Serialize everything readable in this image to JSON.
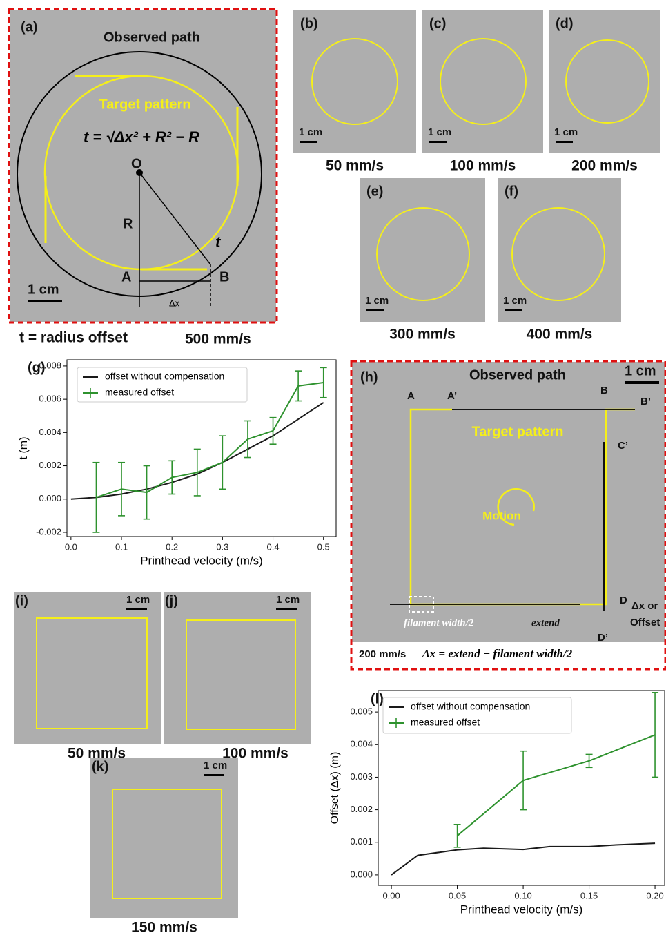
{
  "panel_a": {
    "label": "(a)",
    "observed": "Observed path",
    "target": "Target pattern",
    "formula": "t = √Δx² + R² − R",
    "o": "O",
    "r": "R",
    "a": "A",
    "b": "B",
    "t": "t",
    "dx": "Δx",
    "scale": "1 cm",
    "caption": "t = radius offset",
    "speed": "500 mm/s"
  },
  "panels_bf": [
    {
      "label": "(b)",
      "scale": "1 cm",
      "speed": "50 mm/s"
    },
    {
      "label": "(c)",
      "scale": "1 cm",
      "speed": "100 mm/s"
    },
    {
      "label": "(d)",
      "scale": "1 cm",
      "speed": "200 mm/s"
    },
    {
      "label": "(e)",
      "scale": "1 cm",
      "speed": "300 mm/s"
    },
    {
      "label": "(f)",
      "scale": "1 cm",
      "speed": "400 mm/s"
    }
  ],
  "panel_h": {
    "label": "(h)",
    "observed": "Observed path",
    "scale": "1 cm",
    "a": "A",
    "a2": "A’",
    "b": "B",
    "b2": "B’",
    "c2": "C’",
    "target": "Target pattern",
    "motion": "Motion",
    "d": "D",
    "dx_or": "Δx or",
    "offset": "Offset",
    "d2": "D’",
    "filament": "filament width/2",
    "extend": "extend",
    "speed": "200 mm/s",
    "formula": "Δx = extend − filament width/2"
  },
  "panels_ijk": [
    {
      "label": "(i)",
      "scale": "1 cm",
      "speed": "50 mm/s"
    },
    {
      "label": "(j)",
      "scale": "1 cm",
      "speed": "100 mm/s"
    },
    {
      "label": "(k)",
      "scale": "1 cm",
      "speed": "150 mm/s"
    }
  ],
  "chart_data": [
    {
      "type": "line",
      "label": "(g)",
      "xlabel": "Printhead velocity (m/s)",
      "ylabel": "t (m)",
      "legend": "upper left",
      "xlim": [
        -0.008,
        0.525
      ],
      "ylim": [
        -0.00225,
        0.00837
      ],
      "xticks": [
        {
          "value": 0,
          "label": "0.0"
        },
        {
          "value": 0.1,
          "label": "0.1"
        },
        {
          "value": 0.2,
          "label": "0.2"
        },
        {
          "value": 0.3,
          "label": "0.3"
        },
        {
          "value": 0.4,
          "label": "0.4"
        },
        {
          "value": 0.5,
          "label": "0.5"
        }
      ],
      "yticks": [
        {
          "value": -0.002,
          "label": "-0.002"
        },
        {
          "value": 0,
          "label": "0.000"
        },
        {
          "value": 0.002,
          "label": "0.002"
        },
        {
          "value": 0.004,
          "label": "0.004"
        },
        {
          "value": 0.006,
          "label": "0.006"
        },
        {
          "value": 0.008,
          "label": "0.008"
        }
      ],
      "series": [
        {
          "name": "offset without compensation",
          "color": "#1a1a1a",
          "x": [
            0,
            0.05,
            0.1,
            0.15,
            0.2,
            0.25,
            0.3,
            0.35,
            0.4,
            0.45,
            0.5
          ],
          "values": [
            0,
            0.0001,
            0.0003,
            0.0006,
            0.001,
            0.0015,
            0.0022,
            0.003,
            0.0038,
            0.0048,
            0.0058
          ]
        },
        {
          "name": "measured offset",
          "color": "#2e922e",
          "x": [
            0.05,
            0.1,
            0.15,
            0.2,
            0.25,
            0.3,
            0.35,
            0.4,
            0.45,
            0.5
          ],
          "values": [
            0.0001,
            0.0006,
            0.0004,
            0.0013,
            0.0016,
            0.0022,
            0.0036,
            0.0041,
            0.0068,
            0.007
          ],
          "errors": [
            0.0021,
            0.0016,
            0.0016,
            0.001,
            0.0014,
            0.0016,
            0.0011,
            0.0008,
            0.0009,
            0.0009
          ]
        }
      ]
    },
    {
      "type": "line",
      "label": "(l)",
      "xlabel": "Printhead velocity (m/s)",
      "ylabel": "Offset (Δx) (m)",
      "legend": "upper left",
      "xlim": [
        -0.01,
        0.2073
      ],
      "ylim": [
        -0.00032,
        0.00566
      ],
      "xticks": [
        {
          "value": 0,
          "label": "0.00"
        },
        {
          "value": 0.05,
          "label": "0.05"
        },
        {
          "value": 0.1,
          "label": "0.10"
        },
        {
          "value": 0.15,
          "label": "0.15"
        },
        {
          "value": 0.2,
          "label": "0.20"
        }
      ],
      "yticks": [
        {
          "value": 0,
          "label": "0.000"
        },
        {
          "value": 0.001,
          "label": "0.001"
        },
        {
          "value": 0.002,
          "label": "0.002"
        },
        {
          "value": 0.003,
          "label": "0.003"
        },
        {
          "value": 0.004,
          "label": "0.004"
        },
        {
          "value": 0.005,
          "label": "0.005"
        }
      ],
      "series": [
        {
          "name": "offset without compensation",
          "color": "#1a1a1a",
          "x": [
            0,
            0.02,
            0.05,
            0.07,
            0.1,
            0.12,
            0.15,
            0.17,
            0.2
          ],
          "values": [
            0,
            0.0006,
            0.00077,
            0.00082,
            0.00078,
            0.00087,
            0.00087,
            0.00092,
            0.00097
          ]
        },
        {
          "name": "measured offset",
          "color": "#2e922e",
          "x": [
            0.05,
            0.1,
            0.15,
            0.2
          ],
          "values": [
            0.0012,
            0.0029,
            0.0035,
            0.0043
          ],
          "errors": [
            0.00035,
            0.0009,
            0.0002,
            0.0013
          ]
        }
      ]
    }
  ]
}
